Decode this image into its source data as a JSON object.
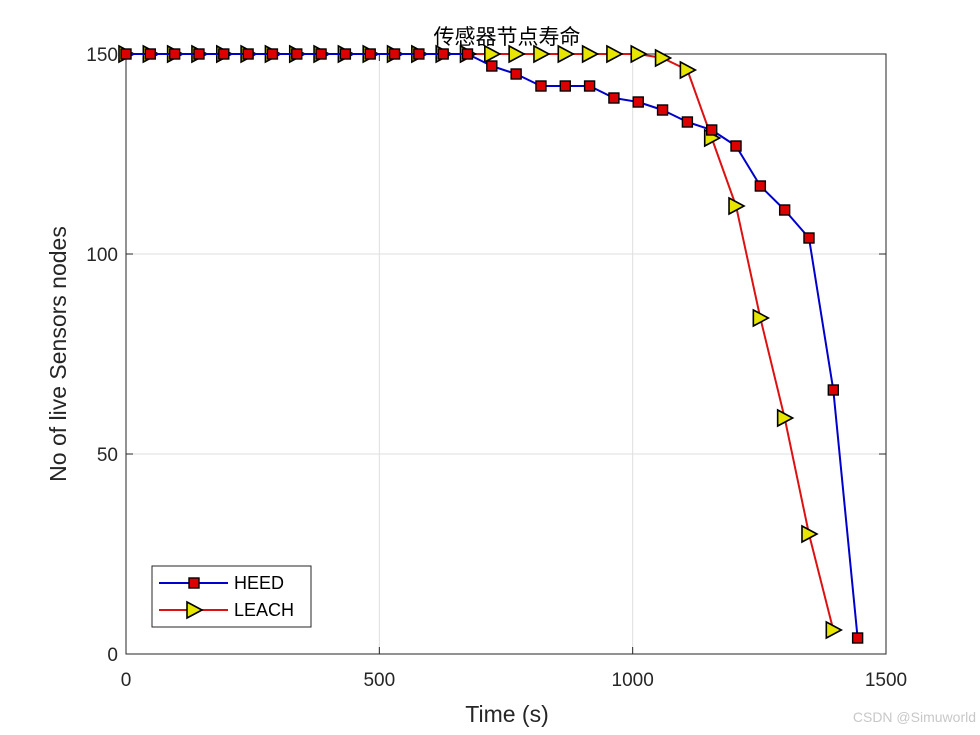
{
  "chart_data": {
    "type": "line",
    "title": "传感器节点寿命",
    "xlabel": "Time (s)",
    "ylabel": "No of live Sensors nodes",
    "xlim": [
      0,
      1500
    ],
    "ylim": [
      0,
      150
    ],
    "xticks": [
      "0",
      "500",
      "1000",
      "1500"
    ],
    "yticks": [
      "0",
      "50",
      "100",
      "150"
    ],
    "grid": true,
    "legend_position": "bottom-left",
    "series": [
      {
        "name": "HEED",
        "color": "#0000cc",
        "marker": "square",
        "marker_fill": "#dd0000",
        "x": [
          0,
          48,
          96,
          144,
          193,
          241,
          289,
          337,
          385,
          433,
          482,
          530,
          578,
          626,
          674,
          722,
          770,
          819,
          867,
          915,
          963,
          1011,
          1059,
          1108,
          1156,
          1204,
          1252,
          1300,
          1348,
          1396,
          1444
        ],
        "y": [
          150,
          150,
          150,
          150,
          150,
          150,
          150,
          150,
          150,
          150,
          150,
          150,
          150,
          150,
          150,
          147,
          145,
          142,
          142,
          142,
          139,
          138,
          136,
          133,
          131,
          127,
          117,
          111,
          104,
          66,
          4
        ]
      },
      {
        "name": "LEACH",
        "color": "#dd1111",
        "marker": "triangle-right",
        "marker_fill": "#e6e600",
        "x": [
          0,
          48,
          96,
          144,
          193,
          241,
          289,
          337,
          385,
          433,
          482,
          530,
          578,
          626,
          674,
          722,
          770,
          819,
          867,
          915,
          963,
          1011,
          1059,
          1108,
          1156,
          1204,
          1252,
          1300,
          1348,
          1396
        ],
        "y": [
          150,
          150,
          150,
          150,
          150,
          150,
          150,
          150,
          150,
          150,
          150,
          150,
          150,
          150,
          150,
          150,
          150,
          150,
          150,
          150,
          150,
          150,
          149,
          146,
          129,
          112,
          84,
          59,
          30,
          6
        ]
      }
    ]
  },
  "watermark": "CSDN @Simuworld"
}
